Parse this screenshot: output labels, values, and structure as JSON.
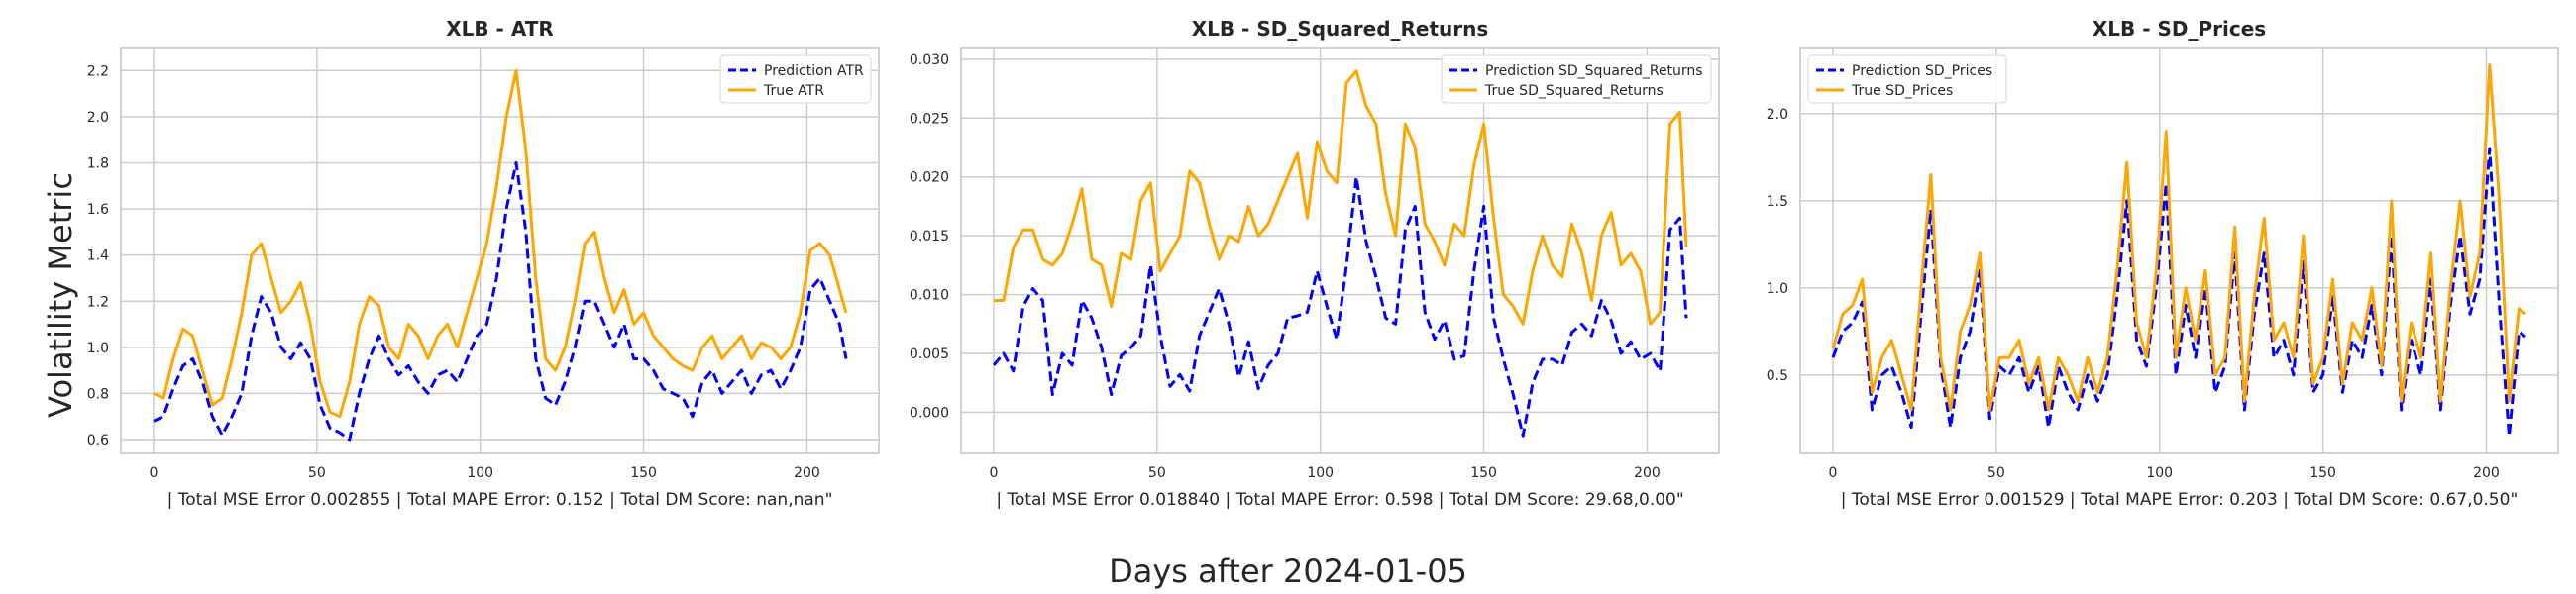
{
  "figure": {
    "ylabel": "Volatility Metric",
    "xlabel": "Days after 2024-01-05"
  },
  "chart_data": [
    {
      "type": "line",
      "title": "XLB - ATR",
      "xlabel": "| Total MSE Error 0.002855 | Total MAPE Error: 0.152 | Total DM Score: nan,nan\"",
      "ylabel": "",
      "xlim": [
        -10,
        222
      ],
      "ylim": [
        0.54,
        2.3
      ],
      "xticks": [
        0,
        50,
        100,
        150,
        200
      ],
      "yticks": [
        0.6,
        0.8,
        1.0,
        1.2,
        1.4,
        1.6,
        1.8,
        2.0,
        2.2
      ],
      "ytick_labels": [
        "0.6",
        "0.8",
        "1.0",
        "1.2",
        "1.4",
        "1.6",
        "1.8",
        "2.0",
        "2.2"
      ],
      "legend_position": "top-right",
      "grid": true,
      "series": [
        {
          "name": "Prediction ATR",
          "color": "#0000ff",
          "style": "dashed",
          "x": [
            0,
            3,
            6,
            9,
            12,
            15,
            18,
            21,
            24,
            27,
            30,
            33,
            36,
            39,
            42,
            45,
            48,
            51,
            54,
            57,
            60,
            63,
            66,
            69,
            72,
            75,
            78,
            81,
            84,
            87,
            90,
            93,
            96,
            99,
            102,
            105,
            108,
            111,
            114,
            117,
            120,
            123,
            126,
            129,
            132,
            135,
            138,
            141,
            144,
            147,
            150,
            153,
            156,
            159,
            162,
            165,
            168,
            171,
            174,
            177,
            180,
            183,
            186,
            189,
            192,
            195,
            198,
            201,
            204,
            207,
            210,
            212
          ],
          "values": [
            0.68,
            0.7,
            0.82,
            0.92,
            0.95,
            0.85,
            0.7,
            0.62,
            0.7,
            0.8,
            1.05,
            1.22,
            1.15,
            1.0,
            0.95,
            1.02,
            0.95,
            0.75,
            0.65,
            0.63,
            0.6,
            0.8,
            0.95,
            1.05,
            0.95,
            0.88,
            0.92,
            0.85,
            0.8,
            0.88,
            0.9,
            0.85,
            0.95,
            1.05,
            1.1,
            1.3,
            1.6,
            1.8,
            1.5,
            0.95,
            0.78,
            0.75,
            0.85,
            1.0,
            1.2,
            1.2,
            1.1,
            1.0,
            1.1,
            0.95,
            0.95,
            0.9,
            0.82,
            0.8,
            0.78,
            0.7,
            0.85,
            0.9,
            0.8,
            0.85,
            0.9,
            0.8,
            0.88,
            0.9,
            0.82,
            0.9,
            1.0,
            1.25,
            1.3,
            1.2,
            1.1,
            0.95
          ]
        },
        {
          "name": "True ATR",
          "color": "#ffa500",
          "style": "solid",
          "x": [
            0,
            3,
            6,
            9,
            12,
            15,
            18,
            21,
            24,
            27,
            30,
            33,
            36,
            39,
            42,
            45,
            48,
            51,
            54,
            57,
            60,
            63,
            66,
            69,
            72,
            75,
            78,
            81,
            84,
            87,
            90,
            93,
            96,
            99,
            102,
            105,
            108,
            111,
            114,
            117,
            120,
            123,
            126,
            129,
            132,
            135,
            138,
            141,
            144,
            147,
            150,
            153,
            156,
            159,
            162,
            165,
            168,
            171,
            174,
            177,
            180,
            183,
            186,
            189,
            192,
            195,
            198,
            201,
            204,
            207,
            210,
            212
          ],
          "values": [
            0.8,
            0.78,
            0.95,
            1.08,
            1.05,
            0.9,
            0.75,
            0.78,
            0.95,
            1.15,
            1.4,
            1.45,
            1.3,
            1.15,
            1.2,
            1.28,
            1.1,
            0.85,
            0.72,
            0.7,
            0.85,
            1.1,
            1.22,
            1.18,
            1.0,
            0.95,
            1.1,
            1.05,
            0.95,
            1.05,
            1.1,
            1.0,
            1.15,
            1.3,
            1.45,
            1.7,
            2.0,
            2.2,
            1.85,
            1.3,
            0.95,
            0.9,
            1.0,
            1.2,
            1.45,
            1.5,
            1.3,
            1.15,
            1.25,
            1.1,
            1.15,
            1.05,
            1.0,
            0.95,
            0.92,
            0.9,
            1.0,
            1.05,
            0.95,
            1.0,
            1.05,
            0.95,
            1.02,
            1.0,
            0.95,
            1.0,
            1.15,
            1.42,
            1.45,
            1.4,
            1.25,
            1.15
          ]
        }
      ]
    },
    {
      "type": "line",
      "title": "XLB - SD_Squared_Returns",
      "xlabel": "| Total MSE Error 0.018840 | Total MAPE Error: 0.598 | Total DM Score: 29.68,0.00\"",
      "ylabel": "",
      "xlim": [
        -10,
        222
      ],
      "ylim": [
        -0.0035,
        0.031
      ],
      "xticks": [
        0,
        50,
        100,
        150,
        200
      ],
      "yticks": [
        0.0,
        0.005,
        0.01,
        0.015,
        0.02,
        0.025,
        0.03
      ],
      "ytick_labels": [
        "0.000",
        "0.005",
        "0.010",
        "0.015",
        "0.020",
        "0.025",
        "0.030"
      ],
      "legend_position": "top-right",
      "grid": true,
      "series": [
        {
          "name": "Prediction SD_Squared_Returns",
          "color": "#0000ff",
          "style": "dashed",
          "x": [
            0,
            3,
            6,
            9,
            12,
            15,
            18,
            21,
            24,
            27,
            30,
            33,
            36,
            39,
            42,
            45,
            48,
            51,
            54,
            57,
            60,
            63,
            66,
            69,
            72,
            75,
            78,
            81,
            84,
            87,
            90,
            93,
            96,
            99,
            102,
            105,
            108,
            111,
            114,
            117,
            120,
            123,
            126,
            129,
            132,
            135,
            138,
            141,
            144,
            147,
            150,
            153,
            156,
            159,
            162,
            165,
            168,
            171,
            174,
            177,
            180,
            183,
            186,
            189,
            192,
            195,
            198,
            201,
            204,
            207,
            210,
            212
          ],
          "values": [
            0.004,
            0.005,
            0.0035,
            0.009,
            0.0105,
            0.0095,
            0.0015,
            0.005,
            0.004,
            0.0095,
            0.008,
            0.0055,
            0.0015,
            0.0048,
            0.0055,
            0.0065,
            0.0125,
            0.0065,
            0.0022,
            0.0032,
            0.0018,
            0.0065,
            0.0085,
            0.0105,
            0.0075,
            0.003,
            0.006,
            0.002,
            0.004,
            0.005,
            0.008,
            0.0082,
            0.0085,
            0.012,
            0.009,
            0.0062,
            0.0125,
            0.02,
            0.0145,
            0.0115,
            0.008,
            0.0075,
            0.0155,
            0.0175,
            0.0085,
            0.0062,
            0.0078,
            0.0045,
            0.0048,
            0.012,
            0.0175,
            0.008,
            0.0045,
            0.0015,
            -0.002,
            0.0025,
            0.0045,
            0.0045,
            0.004,
            0.0068,
            0.0075,
            0.0065,
            0.0095,
            0.0078,
            0.005,
            0.006,
            0.0045,
            0.005,
            0.0035,
            0.0155,
            0.0165,
            0.008
          ]
        },
        {
          "name": "True SD_Squared_Returns",
          "color": "#ffa500",
          "style": "solid",
          "x": [
            0,
            3,
            6,
            9,
            12,
            15,
            18,
            21,
            24,
            27,
            30,
            33,
            36,
            39,
            42,
            45,
            48,
            51,
            54,
            57,
            60,
            63,
            66,
            69,
            72,
            75,
            78,
            81,
            84,
            87,
            90,
            93,
            96,
            99,
            102,
            105,
            108,
            111,
            114,
            117,
            120,
            123,
            126,
            129,
            132,
            135,
            138,
            141,
            144,
            147,
            150,
            153,
            156,
            159,
            162,
            165,
            168,
            171,
            174,
            177,
            180,
            183,
            186,
            189,
            192,
            195,
            198,
            201,
            204,
            207,
            210,
            212
          ],
          "values": [
            0.0095,
            0.0095,
            0.014,
            0.0155,
            0.0155,
            0.013,
            0.0125,
            0.0135,
            0.016,
            0.019,
            0.013,
            0.0125,
            0.009,
            0.0135,
            0.013,
            0.018,
            0.0195,
            0.012,
            0.0135,
            0.015,
            0.0205,
            0.0195,
            0.016,
            0.013,
            0.015,
            0.0145,
            0.0175,
            0.015,
            0.016,
            0.018,
            0.02,
            0.022,
            0.0165,
            0.023,
            0.0205,
            0.0195,
            0.028,
            0.029,
            0.026,
            0.0245,
            0.0185,
            0.015,
            0.0245,
            0.0225,
            0.016,
            0.0145,
            0.0125,
            0.016,
            0.015,
            0.021,
            0.0245,
            0.0165,
            0.01,
            0.009,
            0.0075,
            0.012,
            0.015,
            0.0125,
            0.0115,
            0.016,
            0.0135,
            0.0095,
            0.015,
            0.017,
            0.0125,
            0.0135,
            0.012,
            0.0075,
            0.0085,
            0.0245,
            0.0255,
            0.014
          ]
        }
      ]
    },
    {
      "type": "line",
      "title": "XLB - SD_Prices",
      "xlabel": "| Total MSE Error 0.001529 | Total MAPE Error: 0.203 | Total DM Score: 0.67,0.50\"",
      "ylabel": "",
      "xlim": [
        -10,
        222
      ],
      "ylim": [
        0.05,
        2.38
      ],
      "xticks": [
        0,
        50,
        100,
        150,
        200
      ],
      "yticks": [
        0.5,
        1.0,
        1.5,
        2.0
      ],
      "ytick_labels": [
        "0.5",
        "1.0",
        "1.5",
        "2.0"
      ],
      "legend_position": "top-left",
      "grid": true,
      "series": [
        {
          "name": "Prediction SD_Prices",
          "color": "#0000ff",
          "style": "dashed",
          "x": [
            0,
            3,
            6,
            9,
            12,
            15,
            18,
            21,
            24,
            27,
            30,
            33,
            36,
            39,
            42,
            45,
            48,
            51,
            54,
            57,
            60,
            63,
            66,
            69,
            72,
            75,
            78,
            81,
            84,
            87,
            90,
            93,
            96,
            99,
            102,
            105,
            108,
            111,
            114,
            117,
            120,
            123,
            126,
            129,
            132,
            135,
            138,
            141,
            144,
            147,
            150,
            153,
            156,
            159,
            162,
            165,
            168,
            171,
            174,
            177,
            180,
            183,
            186,
            189,
            192,
            195,
            198,
            201,
            204,
            207,
            210,
            212
          ],
          "values": [
            0.6,
            0.75,
            0.8,
            0.92,
            0.3,
            0.5,
            0.55,
            0.4,
            0.2,
            0.85,
            1.45,
            0.55,
            0.2,
            0.6,
            0.75,
            1.1,
            0.25,
            0.55,
            0.5,
            0.6,
            0.4,
            0.55,
            0.2,
            0.55,
            0.4,
            0.3,
            0.5,
            0.35,
            0.5,
            0.95,
            1.5,
            0.7,
            0.55,
            1.0,
            1.6,
            0.5,
            0.9,
            0.6,
            1.0,
            0.4,
            0.55,
            1.2,
            0.3,
            0.85,
            1.2,
            0.6,
            0.7,
            0.5,
            1.15,
            0.4,
            0.5,
            0.95,
            0.4,
            0.7,
            0.6,
            0.9,
            0.5,
            1.3,
            0.3,
            0.7,
            0.5,
            1.05,
            0.3,
            0.9,
            1.3,
            0.85,
            1.05,
            1.8,
            0.9,
            0.15,
            0.75,
            0.72
          ]
        },
        {
          "name": "True SD_Prices",
          "color": "#ffa500",
          "style": "solid",
          "x": [
            0,
            3,
            6,
            9,
            12,
            15,
            18,
            21,
            24,
            27,
            30,
            33,
            36,
            39,
            42,
            45,
            48,
            51,
            54,
            57,
            60,
            63,
            66,
            69,
            72,
            75,
            78,
            81,
            84,
            87,
            90,
            93,
            96,
            99,
            102,
            105,
            108,
            111,
            114,
            117,
            120,
            123,
            126,
            129,
            132,
            135,
            138,
            141,
            144,
            147,
            150,
            153,
            156,
            159,
            162,
            165,
            168,
            171,
            174,
            177,
            180,
            183,
            186,
            189,
            192,
            195,
            198,
            201,
            204,
            207,
            210,
            212
          ],
          "values": [
            0.65,
            0.85,
            0.9,
            1.05,
            0.4,
            0.6,
            0.7,
            0.5,
            0.3,
            1.0,
            1.65,
            0.6,
            0.3,
            0.75,
            0.9,
            1.2,
            0.3,
            0.6,
            0.6,
            0.7,
            0.45,
            0.6,
            0.3,
            0.6,
            0.5,
            0.35,
            0.6,
            0.4,
            0.6,
            1.1,
            1.72,
            0.8,
            0.6,
            1.1,
            1.9,
            0.6,
            1.0,
            0.7,
            1.1,
            0.5,
            0.6,
            1.35,
            0.35,
            0.95,
            1.4,
            0.7,
            0.8,
            0.6,
            1.3,
            0.45,
            0.6,
            1.05,
            0.45,
            0.8,
            0.7,
            1.0,
            0.55,
            1.5,
            0.35,
            0.8,
            0.6,
            1.2,
            0.35,
            1.0,
            1.5,
            0.95,
            1.2,
            2.28,
            1.5,
            0.35,
            0.88,
            0.85
          ]
        }
      ]
    }
  ]
}
